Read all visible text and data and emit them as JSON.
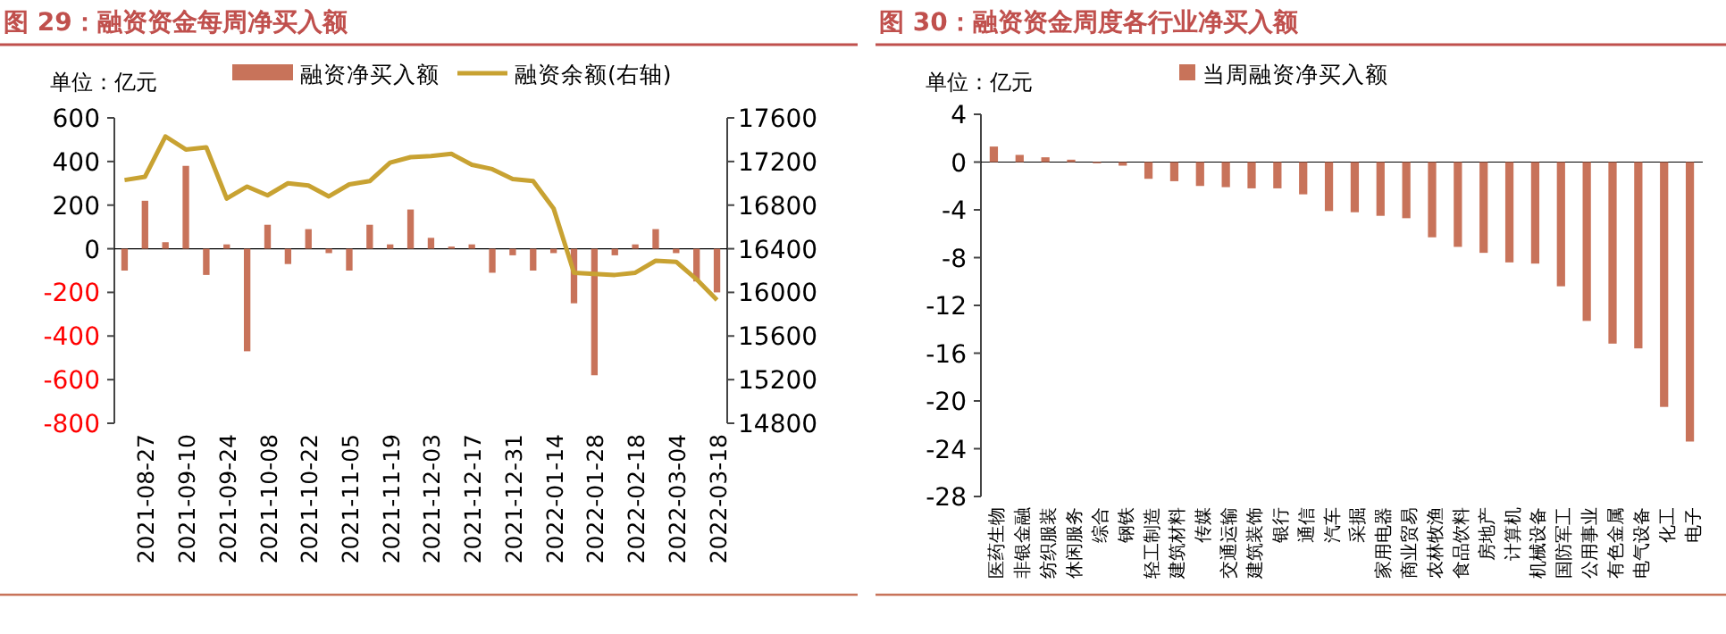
{
  "chart_data": [
    {
      "type": "bar",
      "title": "图 29：融资资金每周净买入额",
      "annotations": [
        "单位：亿元"
      ],
      "legend": "top",
      "categories": [
        null,
        "2021-08-27",
        null,
        "2021-09-10",
        null,
        "2021-09-24",
        null,
        "2021-10-08",
        null,
        "2021-10-22",
        null,
        "2021-11-05",
        null,
        "2021-11-19",
        null,
        "2021-12-03",
        null,
        "2021-12-17",
        null,
        "2021-12-31",
        null,
        "2022-01-14",
        null,
        "2022-01-28",
        null,
        "2022-02-18",
        null,
        "2022-03-04",
        null,
        "2022-03-18"
      ],
      "series": [
        {
          "name": "融资净买入额",
          "color": "#c8735a",
          "values": [
            -100,
            220,
            30,
            380,
            -120,
            20,
            -470,
            110,
            -70,
            90,
            -20,
            -100,
            110,
            20,
            180,
            50,
            10,
            20,
            -110,
            -30,
            -100,
            -20,
            -250,
            -580,
            -30,
            20,
            90,
            -20,
            -150,
            -200
          ]
        },
        {
          "name": "融资余额(右轴)",
          "type": "line",
          "axis": "y2",
          "color": "#c8a232",
          "values": [
            17030,
            17060,
            17430,
            17310,
            17330,
            16860,
            16970,
            16890,
            17000,
            16980,
            16880,
            16990,
            17020,
            17190,
            17240,
            17250,
            17270,
            17170,
            17130,
            17040,
            17020,
            16770,
            16180,
            16170,
            16160,
            16180,
            16290,
            16280,
            16120,
            15930
          ]
        }
      ],
      "ylim": [
        -800,
        600
      ],
      "yticks": [
        -800,
        -600,
        -400,
        -200,
        0,
        200,
        400,
        600
      ],
      "y2lim": [
        14800,
        17600
      ],
      "y2ticks": [
        14800,
        15200,
        15600,
        16000,
        16400,
        16800,
        17200,
        17600
      ]
    },
    {
      "type": "bar",
      "title": "图 30：融资资金周度各行业净买入额",
      "annotations": [
        "单位：亿元"
      ],
      "legend": "top",
      "categories": [
        "医药生物",
        "非银金融",
        "纺织服装",
        "休闲服务",
        "综合",
        "钢铁",
        "轻工制造",
        "建筑材料",
        "传媒",
        "交通运输",
        "建筑装饰",
        "银行",
        "通信",
        "汽车",
        "采掘",
        "家用电器",
        "商业贸易",
        "农林牧渔",
        "食品饮料",
        "房地产",
        "计算机",
        "机械设备",
        "国防军工",
        "公用事业",
        "有色金属",
        "电气设备",
        "化工",
        "电子"
      ],
      "series": [
        {
          "name": "当周融资净买入额",
          "color": "#c8735a",
          "values": [
            1.3,
            0.6,
            0.4,
            0.2,
            -0.1,
            -0.3,
            -1.4,
            -1.6,
            -2.0,
            -2.1,
            -2.2,
            -2.2,
            -2.7,
            -4.1,
            -4.2,
            -4.5,
            -4.7,
            -6.3,
            -7.1,
            -7.6,
            -8.4,
            -8.5,
            -10.4,
            -13.3,
            -15.2,
            -15.6,
            -20.5,
            -23.4
          ]
        }
      ],
      "ylim": [
        -28,
        4
      ],
      "yticks": [
        -28,
        -24,
        -20,
        -16,
        -12,
        -8,
        -4,
        0,
        4
      ]
    }
  ]
}
